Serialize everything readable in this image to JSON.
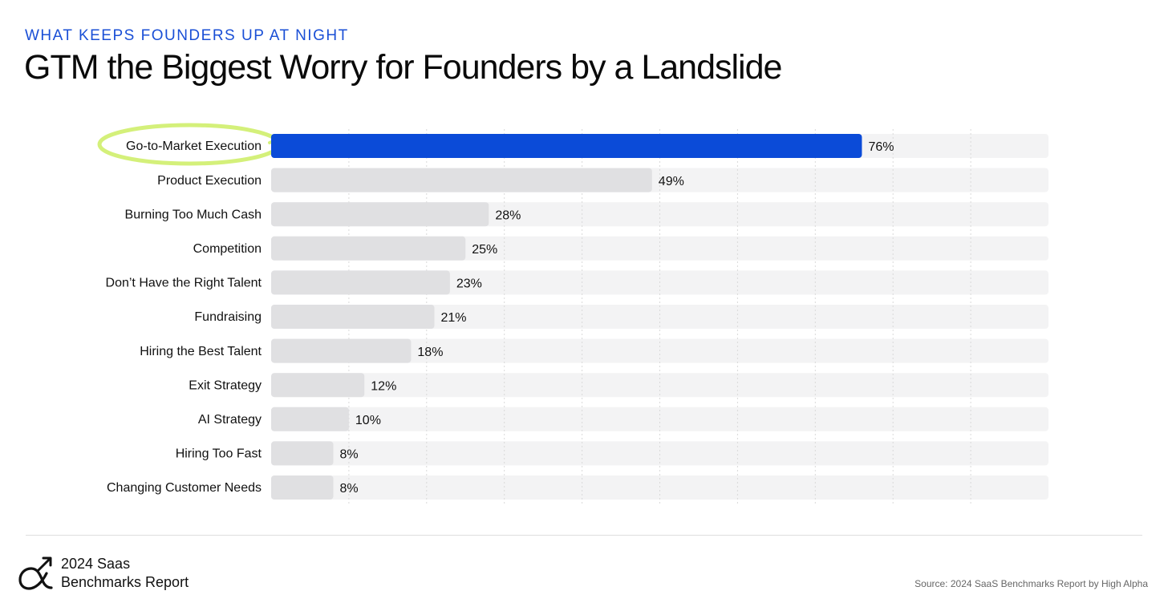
{
  "header": {
    "eyebrow": "WHAT KEEPS FOUNDERS UP AT NIGHT",
    "title": "GTM the Biggest Worry for Founders by a Landslide"
  },
  "footer": {
    "brand_line1": "2024 Saas",
    "brand_line2": "Benchmarks Report",
    "source": "Source: 2024 SaaS Benchmarks Report by High Alpha"
  },
  "colors": {
    "highlight_bar": "#0b4bd8",
    "default_bar": "#e0e0e2",
    "track": "#f3f3f4",
    "gridline": "#d9d9d9",
    "highlight_circle": "#d4f07a",
    "eyebrow": "#1a4fd6"
  },
  "chart_data": {
    "type": "bar",
    "orientation": "horizontal",
    "title": "GTM the Biggest Worry for Founders by a Landslide",
    "categories": [
      "Go-to-Market Execution",
      "Product Execution",
      "Burning Too Much Cash",
      "Competition",
      "Don’t Have the Right Talent",
      "Fundraising",
      "Hiring the Best Talent",
      "Exit Strategy",
      "AI Strategy",
      "Hiring Too Fast",
      "Changing Customer Needs"
    ],
    "values": [
      76,
      49,
      28,
      25,
      23,
      21,
      18,
      12,
      10,
      8,
      8
    ],
    "value_labels": [
      "76%",
      "49%",
      "28%",
      "25%",
      "23%",
      "21%",
      "18%",
      "12%",
      "10%",
      "8%",
      "8%"
    ],
    "highlighted_category": "Go-to-Market Execution",
    "xlim": [
      0,
      100
    ],
    "grid": true,
    "xlabel": "",
    "ylabel": ""
  }
}
